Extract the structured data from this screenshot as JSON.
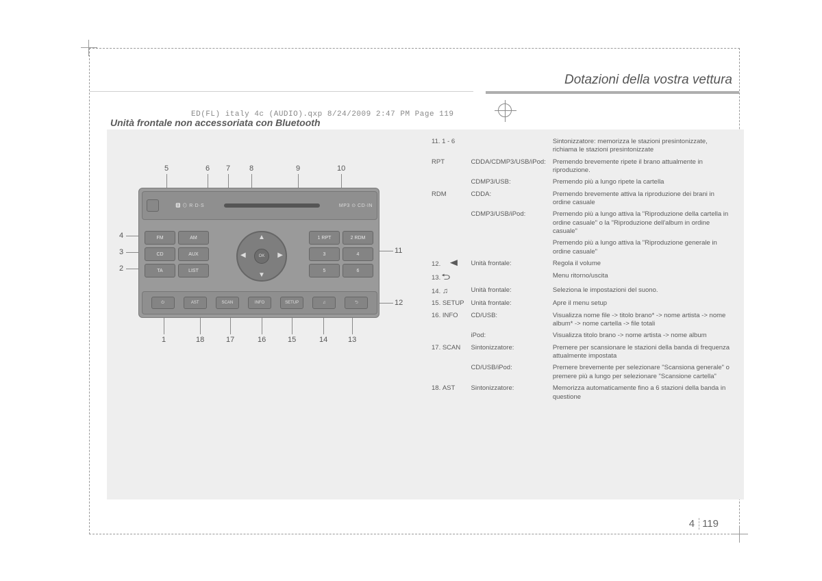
{
  "print_line": "ED(FL) italy 4c (AUDIO).qxp  8/24/2009  2:47 PM  Page 119",
  "section_title": "Dotazioni della vostra vettura",
  "subhead": "Unità frontale non accessoriata con Bluetooth",
  "page": {
    "chapter": "4",
    "number": "119"
  },
  "radio": {
    "badges_left": "🅱  ⊙ R·D·S",
    "badges_right": "MP3  ⊙  CD·IN",
    "left_buttons": [
      [
        "FM",
        "AM"
      ],
      [
        "CD",
        "AUX"
      ],
      [
        "TA",
        "LIST"
      ]
    ],
    "right_buttons": [
      [
        "1 RPT",
        "2 RDM"
      ],
      [
        "3",
        "4"
      ],
      [
        "5",
        "6"
      ]
    ],
    "ok": "OK",
    "bottom_buttons": [
      "⏻",
      "AST",
      "SCAN",
      "INFO",
      "SETUP",
      "♫",
      "⮌"
    ]
  },
  "callouts": {
    "top": [
      "5",
      "6",
      "7",
      "8",
      "9",
      "10"
    ],
    "left": [
      "4",
      "3",
      "2"
    ],
    "right": [
      "11",
      "12"
    ],
    "bottom": [
      "1",
      "18",
      "17",
      "16",
      "15",
      "14",
      "13"
    ]
  },
  "spec": [
    {
      "num": "11.",
      "name": "1 - 6",
      "src": "",
      "desc": "Sintonizzatore: memorizza le stazioni presintonizzate, richiama le stazioni presintonizzate"
    },
    {
      "num": "",
      "name": "RPT",
      "src": "CDDA/CDMP3/USB/iPod:",
      "desc": "Premendo brevemente ripete il brano attualmente in riproduzione."
    },
    {
      "num": "",
      "name": "",
      "src": "CDMP3/USB:",
      "desc": "Premendo più a lungo ripete la cartella"
    },
    {
      "num": "",
      "name": "RDM",
      "src": "CDDA:",
      "desc": "Premendo brevemente attiva la riproduzione dei brani in ordine casuale"
    },
    {
      "num": "",
      "name": "",
      "src": "CDMP3/USB/iPod:",
      "desc": "Premendo più a lungo attiva la \"Riproduzione della cartella in ordine casuale\" o la \"Riproduzione dell'album in ordine casuale\""
    },
    {
      "num": "",
      "name": "",
      "src": "",
      "desc": "Premendo più a lungo attiva la \"Riproduzione generale in ordine casuale\""
    },
    {
      "num": "12.",
      "name": "__VOL__",
      "src": "Unità frontale:",
      "desc": "Regola il volume"
    },
    {
      "num": "13.",
      "name": "__BACK__",
      "src": "",
      "desc": "Menu ritorno/uscita"
    },
    {
      "num": "14.",
      "name": "__NOTE__",
      "src": "Unità frontale:",
      "desc": "Seleziona le impostazioni del suono."
    },
    {
      "num": "15.",
      "name": "SETUP",
      "src": "Unità frontale:",
      "desc": "Apre il menu setup"
    },
    {
      "num": "16.",
      "name": "INFO",
      "src": "CD/USB:",
      "desc": "Visualizza nome file -> titolo brano* -> nome artista -> nome album* -> nome cartella -> file totali"
    },
    {
      "num": "",
      "name": "",
      "src": "iPod:",
      "desc": "Visualizza titolo brano -> nome artista -> nome album"
    },
    {
      "num": "17.",
      "name": "SCAN",
      "src": "Sintonizzatore:",
      "desc": "Premere per scansionare le stazioni della banda di frequenza attualmente impostata"
    },
    {
      "num": "",
      "name": "",
      "src": "CD/USB/iPod:",
      "desc": "Premere brevemente per selezionare \"Scansiona generale\" o premere più a lungo per selezionare \"Scansione cartella\""
    },
    {
      "num": "18.",
      "name": "AST",
      "src": "Sintonizzatore:",
      "desc": "Memorizza automaticamente fino a 6 stazioni della banda in questione"
    }
  ],
  "colors": {
    "page_bg": "#ffffff",
    "content_bg": "#eeeeee",
    "text": "#5a5a5a",
    "radio_body": "#9a9a9a",
    "radio_panel": "#8f8f8f",
    "btn": "#848484",
    "line": "#888888"
  }
}
